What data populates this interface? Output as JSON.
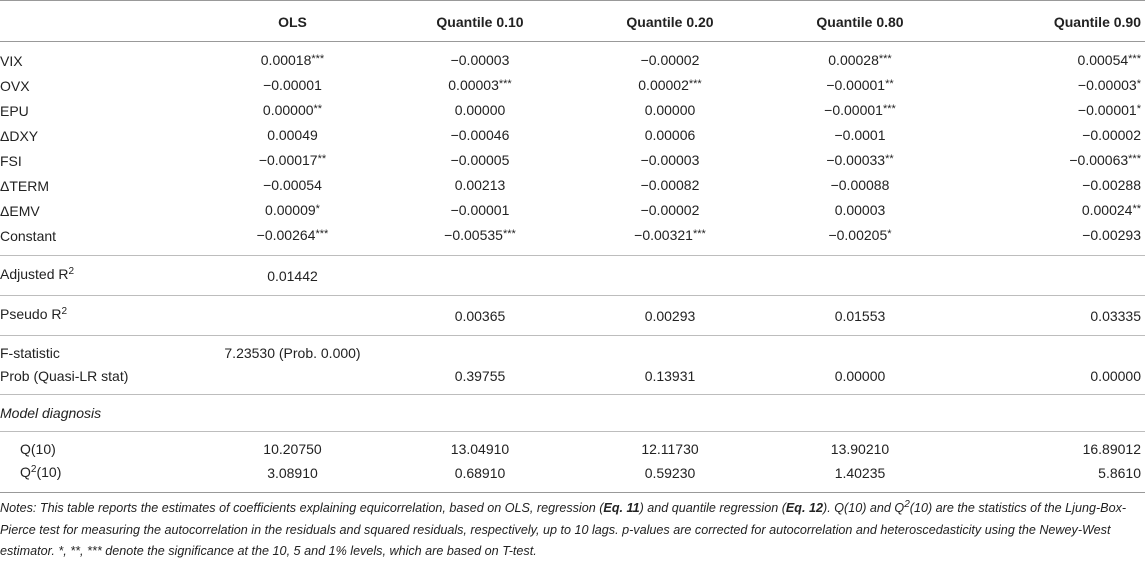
{
  "table": {
    "headers": [
      "",
      "OLS",
      "Quantile 0.10",
      "Quantile 0.20",
      "Quantile 0.80",
      "Quantile 0.90"
    ],
    "coef_rows": [
      {
        "label": "VIX",
        "cells": [
          [
            "0.00018",
            "***"
          ],
          [
            "−0.00003",
            ""
          ],
          [
            "−0.00002",
            ""
          ],
          [
            "0.00028",
            "***"
          ],
          [
            "0.00054",
            "***"
          ]
        ]
      },
      {
        "label": "OVX",
        "cells": [
          [
            "−0.00001",
            ""
          ],
          [
            "0.00003",
            "***"
          ],
          [
            "0.00002",
            "***"
          ],
          [
            "−0.00001",
            "**"
          ],
          [
            "−0.00003",
            "*"
          ]
        ]
      },
      {
        "label": "EPU",
        "cells": [
          [
            "0.00000",
            "**"
          ],
          [
            "0.00000",
            ""
          ],
          [
            "0.00000",
            ""
          ],
          [
            "−0.00001",
            "***"
          ],
          [
            "−0.00001",
            "*"
          ]
        ]
      },
      {
        "label": "ΔDXY",
        "cells": [
          [
            "0.00049",
            ""
          ],
          [
            "−0.00046",
            ""
          ],
          [
            "0.00006",
            ""
          ],
          [
            "−0.0001",
            ""
          ],
          [
            "−0.00002",
            ""
          ]
        ]
      },
      {
        "label": "FSI",
        "cells": [
          [
            "−0.00017",
            "**"
          ],
          [
            "−0.00005",
            ""
          ],
          [
            "−0.00003",
            ""
          ],
          [
            "−0.00033",
            "**"
          ],
          [
            "−0.00063",
            "***"
          ]
        ]
      },
      {
        "label": "ΔTERM",
        "cells": [
          [
            "−0.00054",
            ""
          ],
          [
            "0.00213",
            ""
          ],
          [
            "−0.00082",
            ""
          ],
          [
            "−0.00088",
            ""
          ],
          [
            "−0.00288",
            ""
          ]
        ]
      },
      {
        "label": "ΔEMV",
        "cells": [
          [
            "0.00009",
            "*"
          ],
          [
            "−0.00001",
            ""
          ],
          [
            "−0.00002",
            ""
          ],
          [
            "0.00003",
            ""
          ],
          [
            "0.00024",
            "**"
          ]
        ]
      },
      {
        "label": "Constant",
        "cells": [
          [
            "−0.00264",
            "***"
          ],
          [
            "−0.00535",
            "***"
          ],
          [
            "−0.00321",
            "***"
          ],
          [
            "−0.00205",
            "*"
          ],
          [
            "−0.00293",
            ""
          ]
        ]
      }
    ],
    "adjusted_r2": {
      "label": "Adjusted R",
      "sup": "2",
      "values": [
        "0.01442",
        "",
        "",
        "",
        ""
      ]
    },
    "pseudo_r2": {
      "label": "Pseudo R",
      "sup": "2",
      "values": [
        "",
        "0.00365",
        "0.00293",
        "0.01553",
        "0.03335"
      ]
    },
    "f_stat": {
      "label": "F-statistic",
      "values": [
        "7.23530 (Prob. 0.000)",
        "",
        "",
        "",
        ""
      ]
    },
    "prob_qlr": {
      "label": "Prob (Quasi-LR stat)",
      "values": [
        "",
        "0.39755",
        "0.13931",
        "0.00000",
        "0.00000"
      ]
    },
    "model_diag": {
      "label": "Model diagnosis"
    },
    "q10": {
      "label": "Q(10)",
      "values": [
        "10.20750",
        "13.04910",
        "12.11730",
        "13.90210",
        "16.89012"
      ]
    },
    "q2_10": {
      "label_pre": "Q",
      "sup": "2",
      "label_post": "(10)",
      "values": [
        "3.08910",
        "0.68910",
        "0.59230",
        "1.40235",
        "5.8610"
      ]
    }
  },
  "notes": {
    "p1": "Notes: This table reports the estimates of coefficients explaining equicorrelation, based on OLS, regression (",
    "eq11": "Eq. 11",
    "p2": ") and quantile regression (",
    "eq12": "Eq. 12",
    "p3": "). Q(10) and Q",
    "sup": "2",
    "p4": "(10) are the statistics of the Ljung-Box-Pierce test for measuring the autocorrelation in the residuals and squared residuals, respectively, up to 10 lags. p-values are corrected for autocorrelation and heteroscedasticity using the Newey-West estimator. *, **, *** denote the significance at the 10, 5 and 1% levels, which are based on T-test."
  }
}
